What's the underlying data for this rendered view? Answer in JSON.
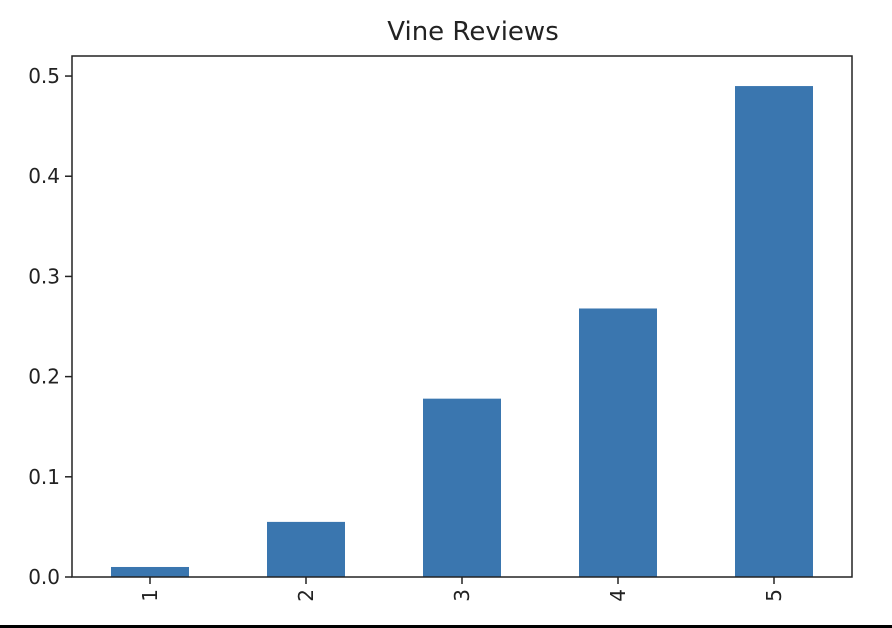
{
  "chart_data": {
    "type": "bar",
    "title": "Vine Reviews",
    "xlabel": "",
    "ylabel": "",
    "categories": [
      "1",
      "2",
      "3",
      "4",
      "5"
    ],
    "values": [
      0.01,
      0.055,
      0.178,
      0.268,
      0.49
    ],
    "ylim": [
      0,
      0.52
    ],
    "yticks": [
      "0.0",
      "0.1",
      "0.2",
      "0.3",
      "0.4",
      "0.5"
    ],
    "ytick_values": [
      0.0,
      0.1,
      0.2,
      0.3,
      0.4,
      0.5
    ],
    "grid": false,
    "bar_color": "#3a76af",
    "axis_color": "#222222"
  }
}
